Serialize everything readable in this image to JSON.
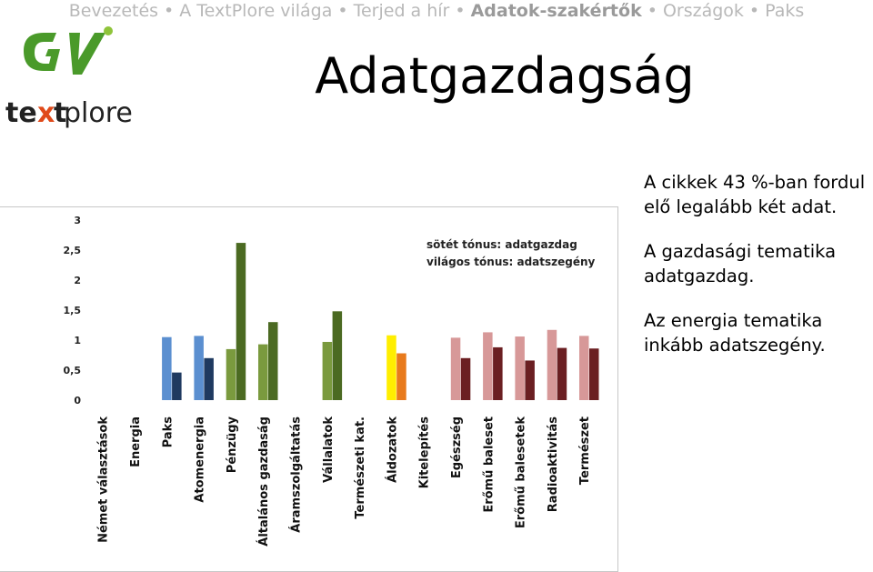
{
  "nav": {
    "items": [
      "Bevezetés",
      "A TextPlore világa",
      "Terjed a hír",
      "Adatok-szakértők",
      "Országok",
      "Paks"
    ],
    "active_index": 3,
    "separator": "•"
  },
  "title": "Adatgazdagság",
  "logos": {
    "gv": "GV",
    "textplore": "textplore"
  },
  "text": {
    "p1": "A cikkek 43 %-ban fordul elő legalább két adat.",
    "p2": "A gazdasági tematika adatgazdag.",
    "p3": "Az energia tematika inkább adatszegény."
  },
  "chart_data": {
    "type": "bar",
    "title": "",
    "xlabel": "",
    "ylabel": "",
    "ylim": [
      0,
      3
    ],
    "yticks": [
      "0",
      "0,5",
      "1",
      "1,5",
      "2",
      "2,5",
      "3"
    ],
    "grid": false,
    "legend_text": [
      "sötét tónus: adatgazdag",
      "világos tónus: adatszegény"
    ],
    "legend_position": "top-center",
    "categories": [
      "Német választások",
      "Energia",
      "Paks",
      "Atomenergia",
      "Pénzügy",
      "Általános gazdaság",
      "Áramszolgáltatás",
      "Vállalatok",
      "Természeti kat.",
      "Áldozatok",
      "Kitelepítés",
      "Egészség",
      "Erőmű baleset",
      "Erőmű balesetek",
      "Radioaktivitás",
      "Természet"
    ],
    "series": [
      {
        "tone": "light",
        "values": [
          null,
          null,
          1.05,
          1.07,
          0.85,
          0.93,
          null,
          0.97,
          null,
          1.08,
          null,
          1.04,
          1.13,
          1.06,
          1.17,
          1.07
        ],
        "colors": [
          "#5b8fd0",
          "#5b8fd0",
          "#5b8fd0",
          "#5b8fd0",
          "#7a9a3e",
          "#7a9a3e",
          "#7a9a3e",
          "#7a9a3e",
          "#7a9a3e",
          "#ffee00",
          "#d79898",
          "#d79898",
          "#d79898",
          "#d79898",
          "#d79898",
          "#d79898"
        ]
      },
      {
        "tone": "dark",
        "values": [
          null,
          null,
          0.46,
          0.7,
          2.62,
          1.3,
          null,
          1.48,
          null,
          0.78,
          null,
          0.7,
          0.88,
          0.66,
          0.87,
          0.86
        ],
        "colors": [
          "#1f3a60",
          "#1f3a60",
          "#1f3a60",
          "#1f3a60",
          "#4b6a22",
          "#4b6a22",
          "#4b6a22",
          "#4b6a22",
          "#4b6a22",
          "#e87a1c",
          "#6b1f22",
          "#6b1f22",
          "#6b1f22",
          "#6b1f22",
          "#6b1f22",
          "#6b1f22"
        ]
      }
    ]
  }
}
